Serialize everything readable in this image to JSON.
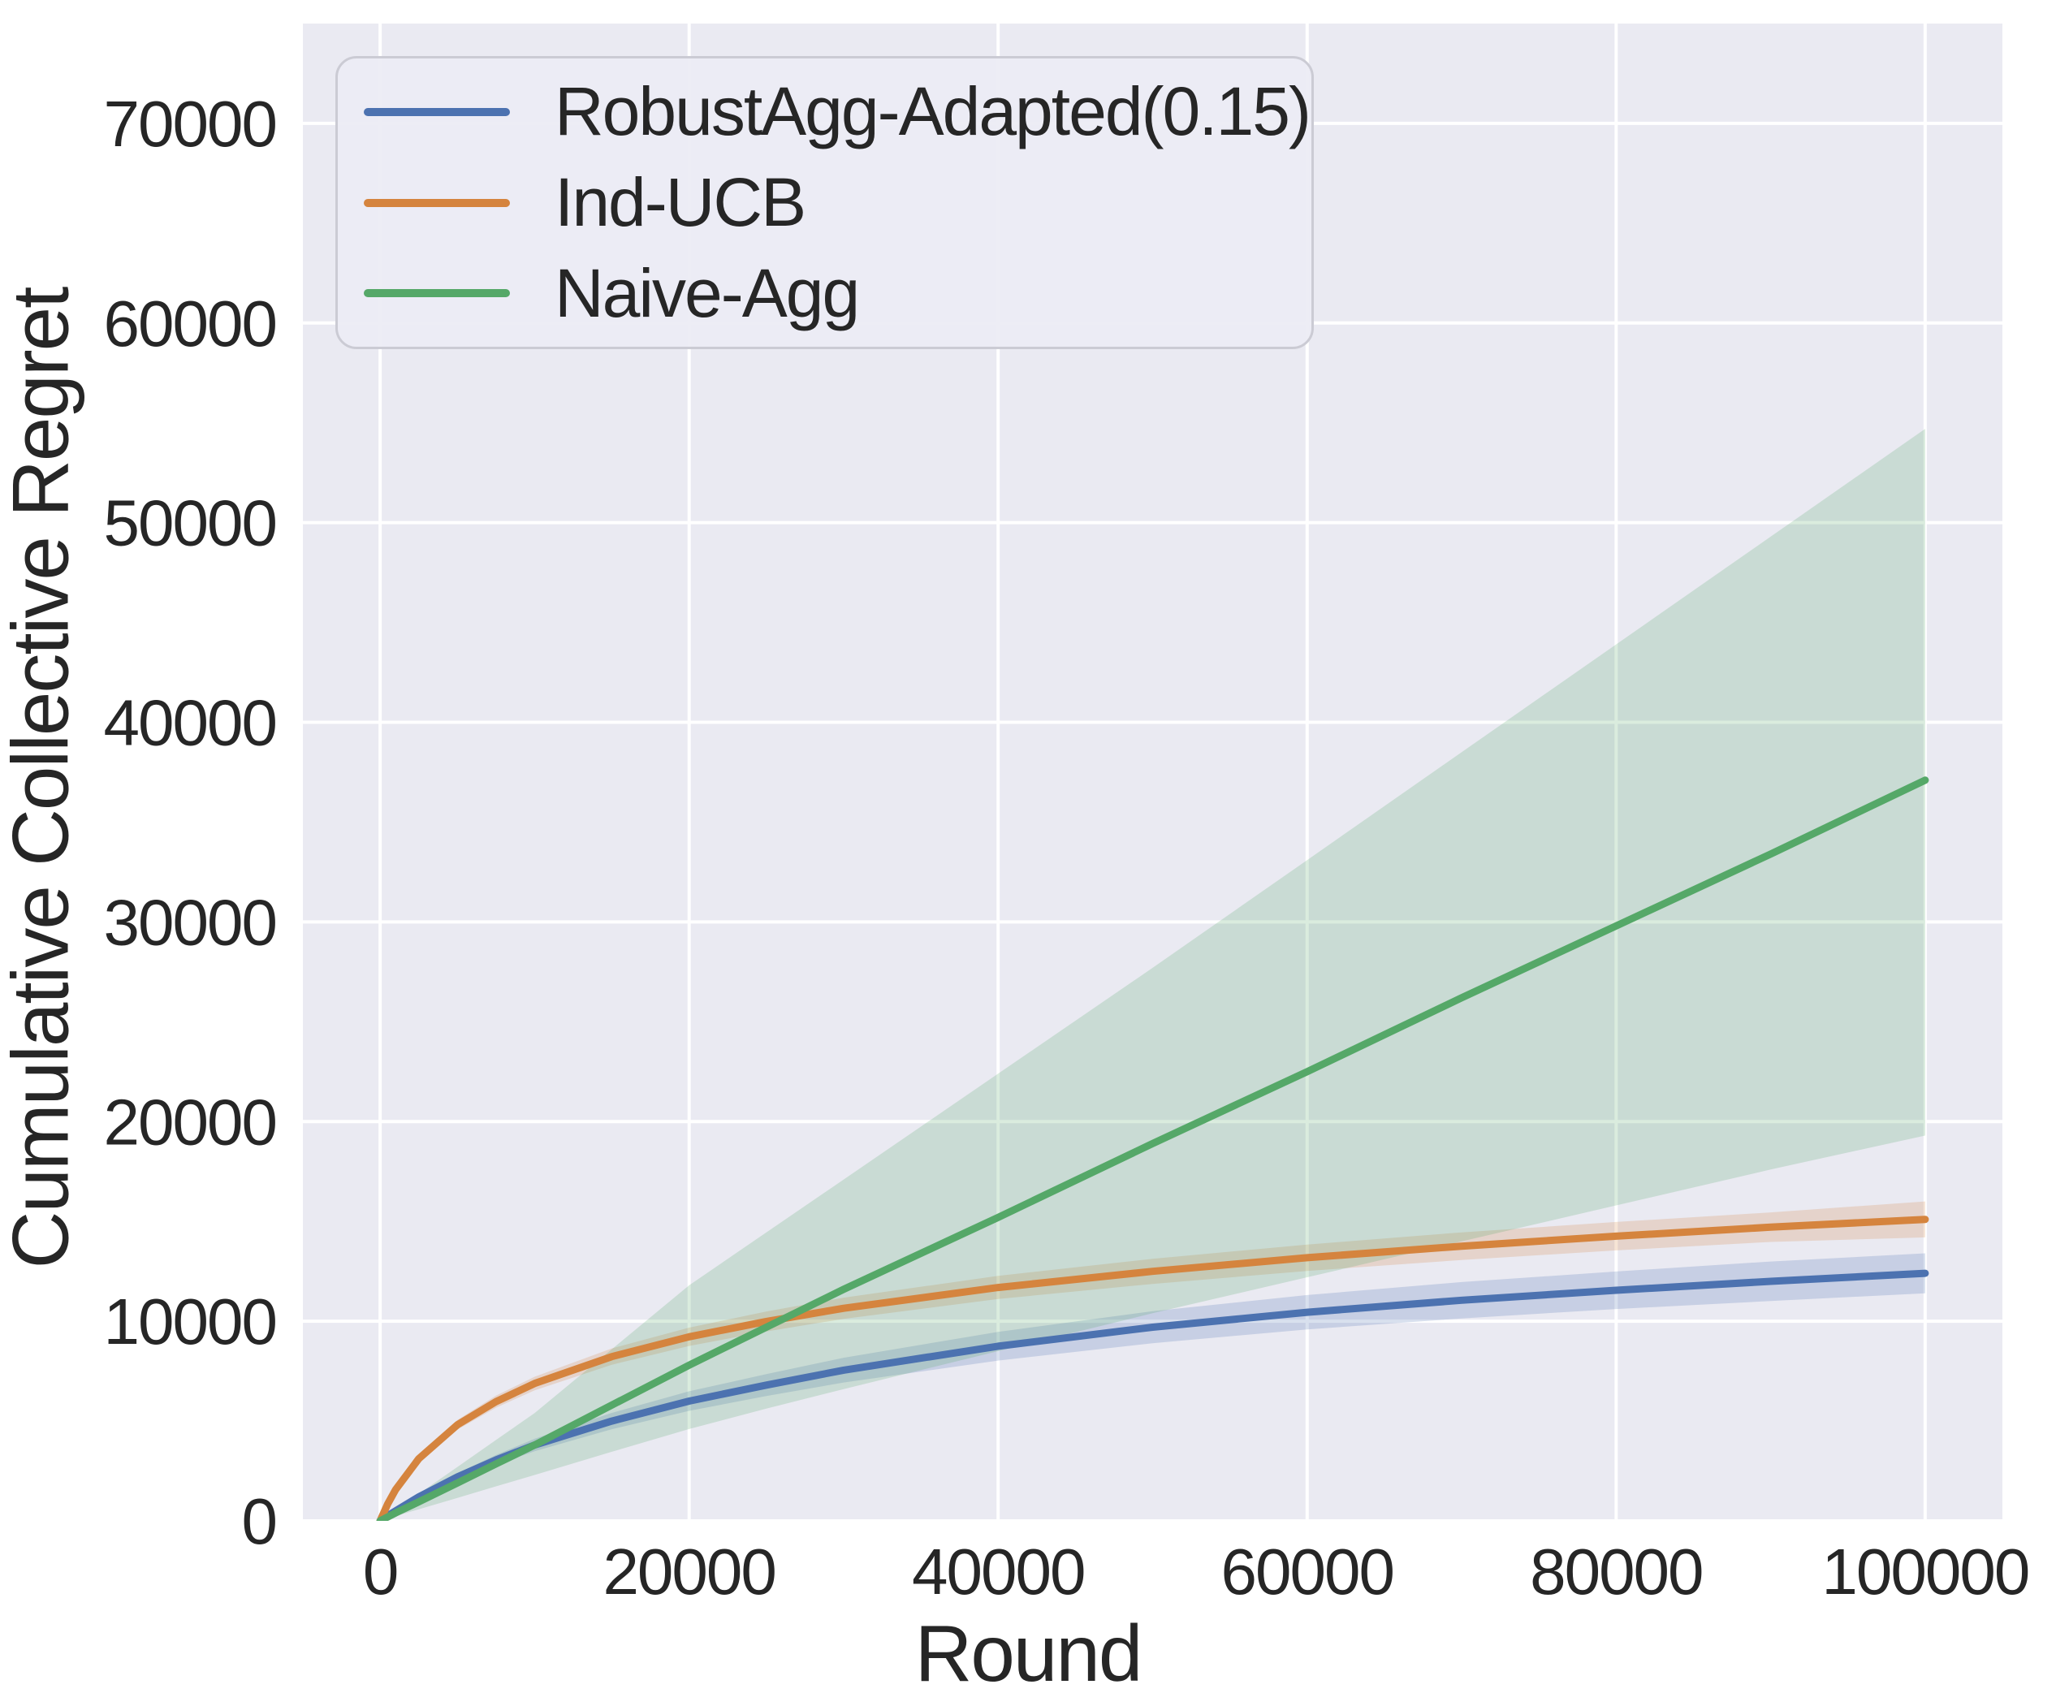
{
  "chart_data": {
    "type": "line",
    "title": "",
    "xlabel": "Round",
    "ylabel": "Cumulative Collective Regret",
    "xlim": [
      -5000,
      105000
    ],
    "ylim": [
      0,
      75000
    ],
    "grid": true,
    "legend_position": "upper left",
    "plot_background_color": "#eaeaf2",
    "grid_color": "#ffffff",
    "text_color": "#262626",
    "band_opacity": 0.22,
    "xticks": {
      "values": [
        0,
        20000,
        40000,
        60000,
        80000,
        100000
      ],
      "labels": [
        "0",
        "20000",
        "40000",
        "60000",
        "80000",
        "100000"
      ]
    },
    "yticks": {
      "values": [
        0,
        10000,
        20000,
        30000,
        40000,
        50000,
        60000,
        70000
      ],
      "labels": [
        "0",
        "10000",
        "20000",
        "30000",
        "40000",
        "50000",
        "60000",
        "70000"
      ]
    },
    "x": [
      0,
      500,
      1000,
      2500,
      5000,
      7500,
      10000,
      15000,
      20000,
      25000,
      30000,
      40000,
      50000,
      60000,
      70000,
      80000,
      90000,
      100000
    ],
    "series": [
      {
        "name": "RobustAgg-Adapted(0.15)",
        "color": "#4c72b0",
        "values": [
          0,
          260,
          500,
          1200,
          2200,
          3050,
          3800,
          5000,
          6000,
          6800,
          7550,
          8750,
          9700,
          10450,
          11050,
          11550,
          12000,
          12400
        ],
        "band_lower": [
          0,
          230,
          450,
          1090,
          2010,
          2800,
          3490,
          4590,
          5510,
          6250,
          6930,
          8030,
          8900,
          9590,
          10140,
          10610,
          11010,
          11400
        ],
        "band_upper": [
          0,
          290,
          550,
          1310,
          2390,
          3300,
          4110,
          5410,
          6490,
          7350,
          8170,
          9470,
          10500,
          11310,
          11960,
          12490,
          12990,
          13400
        ]
      },
      {
        "name": "Ind-UCB",
        "color": "#d5843e",
        "values": [
          0,
          860,
          1560,
          3110,
          4810,
          5970,
          6880,
          8230,
          9220,
          9990,
          10650,
          11690,
          12500,
          13180,
          13760,
          14260,
          14710,
          15100
        ],
        "band_lower": [
          0,
          820,
          1480,
          2950,
          4570,
          5670,
          6540,
          7820,
          8760,
          9490,
          10120,
          11110,
          11870,
          12520,
          13070,
          13550,
          13970,
          14200
        ],
        "band_upper": [
          0,
          900,
          1640,
          3270,
          5050,
          6270,
          7220,
          8640,
          9680,
          10490,
          11180,
          12270,
          13130,
          13840,
          14450,
          14970,
          15450,
          16000
        ]
      },
      {
        "name": "Naive-Agg",
        "color": "#55a868",
        "values": [
          0,
          200,
          400,
          950,
          1900,
          2850,
          3800,
          5800,
          7800,
          9700,
          11600,
          15200,
          18900,
          22500,
          26200,
          29800,
          33400,
          37100
        ],
        "band_lower": [
          0,
          120,
          240,
          580,
          1150,
          1730,
          2300,
          3460,
          4600,
          5620,
          6600,
          8500,
          10400,
          12200,
          14000,
          15800,
          17600,
          19300
        ],
        "band_upper": [
          0,
          280,
          560,
          1350,
          2700,
          4050,
          5400,
          8600,
          11800,
          14450,
          17100,
          22400,
          27700,
          33100,
          38500,
          43900,
          49300,
          54700
        ]
      }
    ]
  }
}
